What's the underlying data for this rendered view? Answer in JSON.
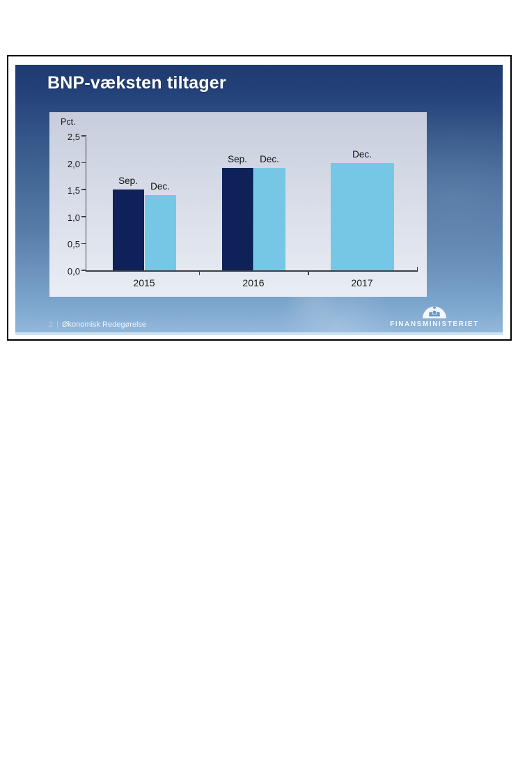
{
  "slide": {
    "title": "BNP-væksten tiltager",
    "footer": {
      "page_number": "2",
      "separator": "|",
      "document_title": "Økonomisk Redegørelse"
    },
    "logo": {
      "ministry_name": "FINANSMINISTERIET",
      "icon": "crown-dome-icon"
    }
  },
  "chart_data": {
    "type": "bar",
    "title": "",
    "xlabel": "",
    "ylabel": "Pct.",
    "ylim": [
      0,
      2.5
    ],
    "ytick_labels": [
      "0,0",
      "0,5",
      "1,0",
      "1,5",
      "2,0",
      "2,5"
    ],
    "categories": [
      "2015",
      "2016",
      "2017"
    ],
    "series": [
      {
        "name": "Sep.",
        "color": "#0e2159",
        "values": [
          1.5,
          1.9,
          null
        ]
      },
      {
        "name": "Dec.",
        "color": "#76c7e5",
        "values": [
          1.4,
          1.9,
          2.0
        ]
      }
    ],
    "grid": false,
    "legend_position": "labels-above-bars"
  },
  "colors": {
    "slide_top": "#1e3a70",
    "slide_bottom": "#95b9dc",
    "panel_top": "#c7cddc",
    "panel_bottom": "#e9edf4",
    "axis": "#3f3f3f",
    "bar_dark": "#0e2159",
    "bar_light": "#76c7e5"
  }
}
